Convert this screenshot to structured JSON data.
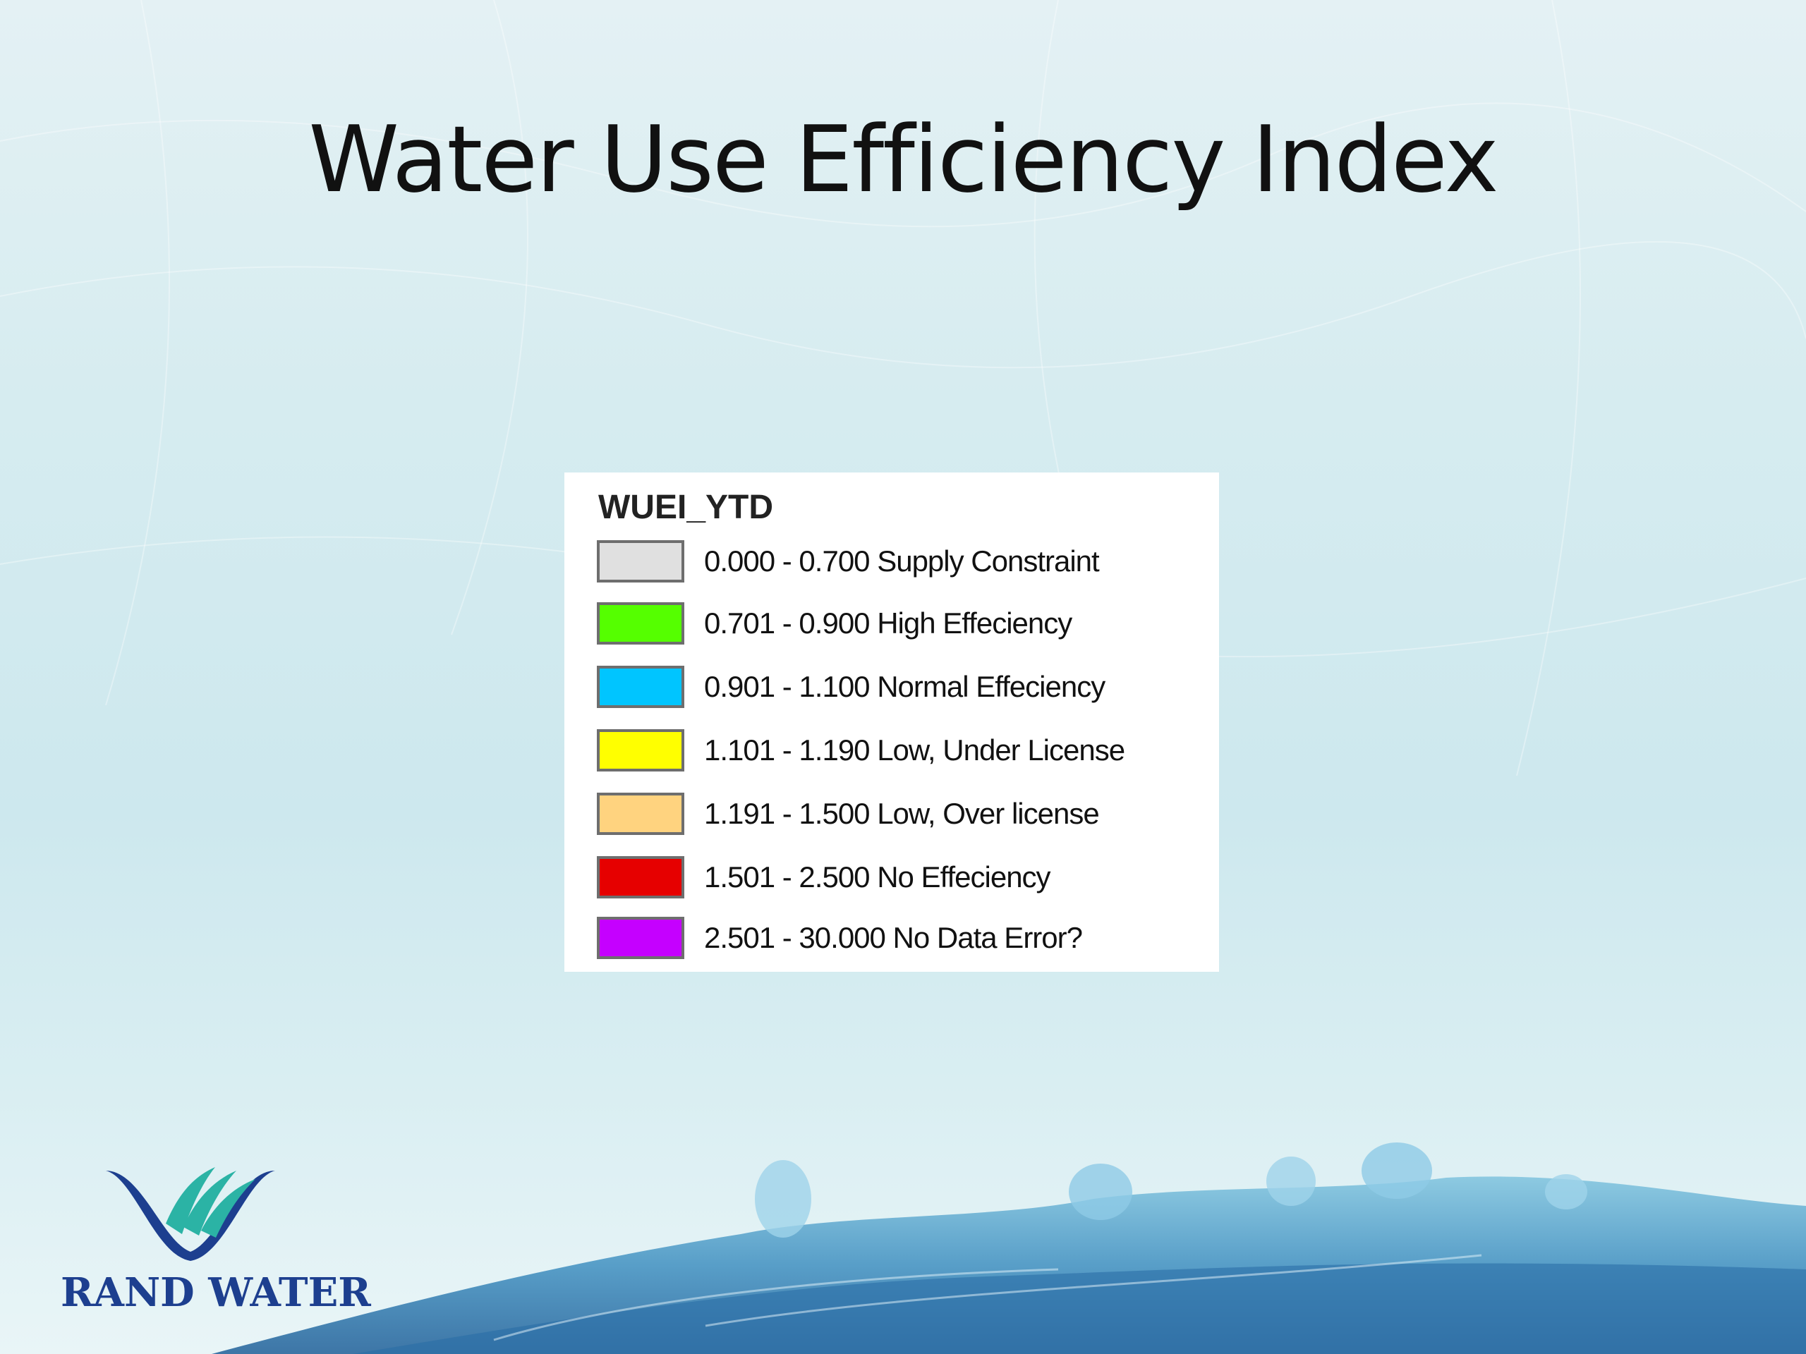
{
  "slide": {
    "title": "Water Use Efficiency Index"
  },
  "legend": {
    "title": "WUEI_YTD",
    "items": [
      {
        "label": "0.000 - 0.700  Supply Constraint",
        "color": "#e0e0e0"
      },
      {
        "label": "0.701 - 0.900  High Effeciency",
        "color": "#55ff00"
      },
      {
        "label": "0.901 - 1.100 Normal Effeciency",
        "color": "#00c5ff"
      },
      {
        "label": "1.101 - 1.190  Low, Under License",
        "color": "#ffff00"
      },
      {
        "label": "1.191 - 1.500 Low, Over license",
        "color": "#ffd37f"
      },
      {
        "label": "1.501 - 2.500  No Effeciency",
        "color": "#e60000"
      },
      {
        "label": "2.501 - 30.000 No Data Error?",
        "color": "#c500ff"
      }
    ]
  },
  "logo": {
    "text": "RAND WATER",
    "color": "#1d3f8f",
    "accent": "#2bb3a5"
  }
}
